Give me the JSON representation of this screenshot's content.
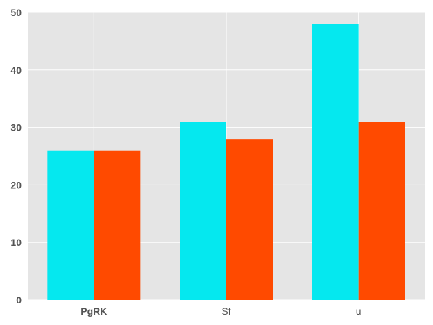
{
  "chart_data": {
    "type": "bar",
    "title": "",
    "xlabel": "",
    "ylabel": "",
    "categories": [
      "PgRK",
      "Sf",
      "u"
    ],
    "series": [
      {
        "values": [
          26,
          31,
          48
        ],
        "color": "#05e8ef"
      },
      {
        "values": [
          26,
          28,
          31
        ],
        "color": "#ff4a00"
      }
    ],
    "ylim": [
      0,
      50
    ],
    "yticks": [
      0,
      10,
      20,
      30,
      40,
      50
    ],
    "ytick_labels": [
      "0",
      "10",
      "20",
      "30",
      "40",
      "50"
    ],
    "grid": true,
    "background_color": "#e5e5e5",
    "grid_color": "#ffffff",
    "bold_categories": [
      "PgRK"
    ]
  }
}
